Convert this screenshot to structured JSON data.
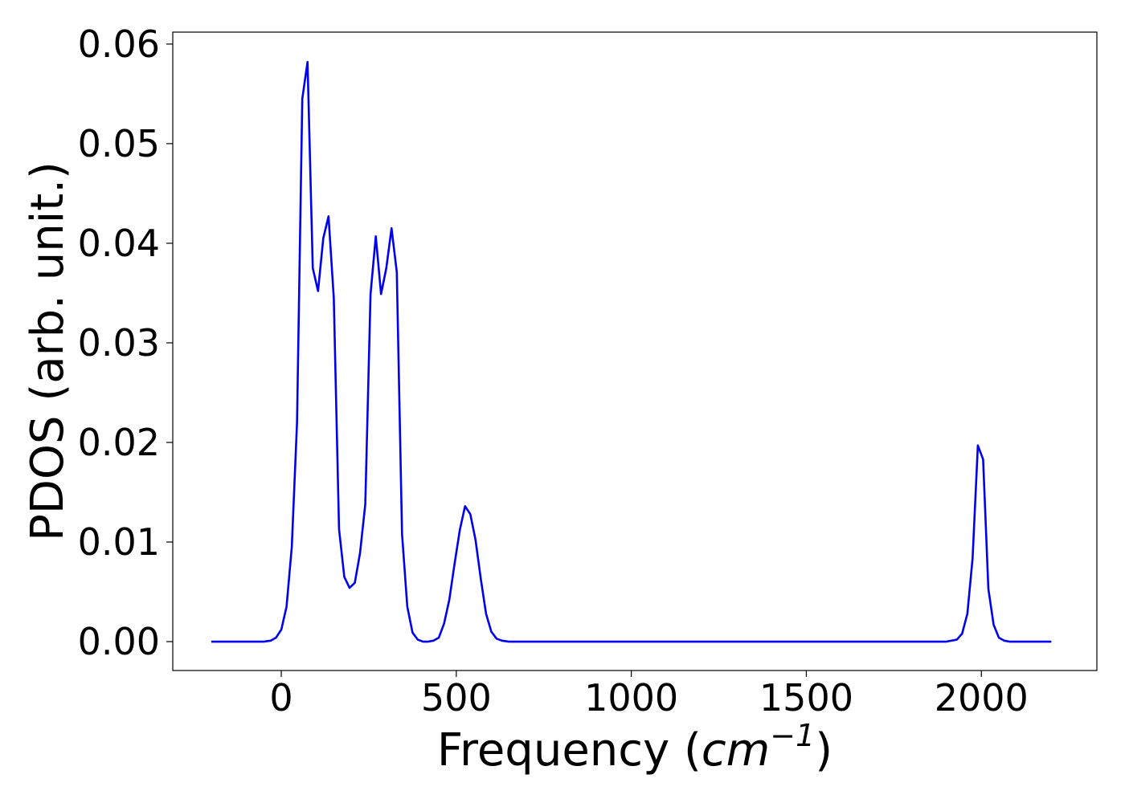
{
  "colors": {
    "line": "#0000ee",
    "axes": "#000000",
    "background": "#ffffff"
  },
  "chart_data": {
    "type": "line",
    "title": "",
    "xlabel": "Frequency (cm⁻¹)",
    "xlabel_parts": {
      "prefix": "Frequency (",
      "italic": "cm",
      "sup": "−1",
      "suffix": ")"
    },
    "ylabel": "PDOS (arb. unit.)",
    "xlim": [
      -310,
      2330
    ],
    "ylim": [
      -0.0029,
      0.0612
    ],
    "xticks": [
      0,
      500,
      1000,
      1500,
      2000
    ],
    "xtick_labels": [
      "0",
      "500",
      "1000",
      "1500",
      "2000"
    ],
    "yticks": [
      0.0,
      0.01,
      0.02,
      0.03,
      0.04,
      0.05,
      0.06
    ],
    "ytick_labels": [
      "0.00",
      "0.01",
      "0.02",
      "0.03",
      "0.04",
      "0.05",
      "0.06"
    ],
    "grid": false,
    "legend": "none",
    "series": [
      {
        "x": [
          -200,
          -150,
          -100,
          -50,
          -30,
          -15,
          0,
          15,
          30,
          45,
          60,
          75,
          90,
          105,
          120,
          135,
          150,
          165,
          180,
          195,
          210,
          225,
          240,
          255,
          270,
          285,
          300,
          315,
          330,
          345,
          360,
          375,
          390,
          405,
          420,
          435,
          450,
          465,
          480,
          495,
          510,
          525,
          540,
          555,
          570,
          585,
          600,
          615,
          630,
          650,
          700,
          800,
          1000,
          1200,
          1400,
          1600,
          1800,
          1900,
          1930,
          1945,
          1960,
          1975,
          1990,
          2005,
          2020,
          2035,
          2050,
          2065,
          2080,
          2100,
          2150,
          2200
        ],
        "y": [
          0.0,
          0.0,
          0.0,
          0.0,
          0.0001,
          0.0004,
          0.0012,
          0.0035,
          0.0095,
          0.022,
          0.0545,
          0.0582,
          0.0375,
          0.0352,
          0.0405,
          0.0427,
          0.0345,
          0.0113,
          0.0065,
          0.0054,
          0.0059,
          0.0089,
          0.0138,
          0.0349,
          0.0407,
          0.0349,
          0.0375,
          0.0415,
          0.0371,
          0.0108,
          0.0035,
          0.0009,
          0.0002,
          0.0,
          0.0,
          0.0001,
          0.0004,
          0.0018,
          0.0042,
          0.0078,
          0.0112,
          0.0136,
          0.0128,
          0.0102,
          0.0063,
          0.0028,
          0.001,
          0.0003,
          0.0001,
          0.0,
          0.0,
          0.0,
          0.0,
          0.0,
          0.0,
          0.0,
          0.0,
          0.0,
          0.0002,
          0.0008,
          0.0028,
          0.0084,
          0.0197,
          0.0183,
          0.0053,
          0.0017,
          0.0004,
          0.0001,
          0.0,
          0.0,
          0.0,
          0.0
        ]
      }
    ]
  }
}
